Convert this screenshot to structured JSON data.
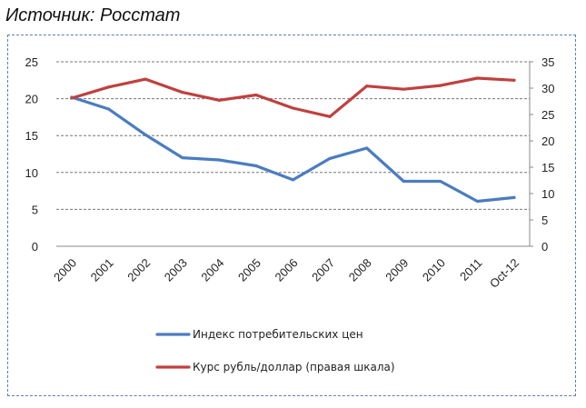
{
  "source_title": "Источник: Росстат",
  "chart_data": {
    "type": "line",
    "categories": [
      "2000",
      "2001",
      "2002",
      "2003",
      "2004",
      "2005",
      "2006",
      "2007",
      "2008",
      "2009",
      "2010",
      "2011",
      "Oct-12"
    ],
    "series": [
      {
        "name": "Индекс потребительских цен",
        "axis": "left",
        "color": "#4a7cc0",
        "values": [
          20.2,
          18.6,
          15.1,
          12.0,
          11.7,
          10.9,
          9.0,
          11.9,
          13.3,
          8.8,
          8.8,
          6.1,
          6.6
        ]
      },
      {
        "name": "Курс рубль/доллар (правая шкала)",
        "axis": "right",
        "color": "#c0403e",
        "values": [
          28.1,
          30.2,
          31.7,
          29.2,
          27.7,
          28.7,
          26.2,
          24.6,
          30.4,
          29.8,
          30.5,
          31.9,
          31.5
        ]
      }
    ],
    "y_left": {
      "min": 0,
      "max": 25,
      "ticks": [
        0,
        5,
        10,
        15,
        20,
        25
      ]
    },
    "y_right": {
      "min": 0,
      "max": 35,
      "ticks": [
        0,
        5,
        10,
        15,
        20,
        25,
        30,
        35
      ]
    },
    "grid": "horizontal-dashed",
    "legend_position": "bottom"
  }
}
